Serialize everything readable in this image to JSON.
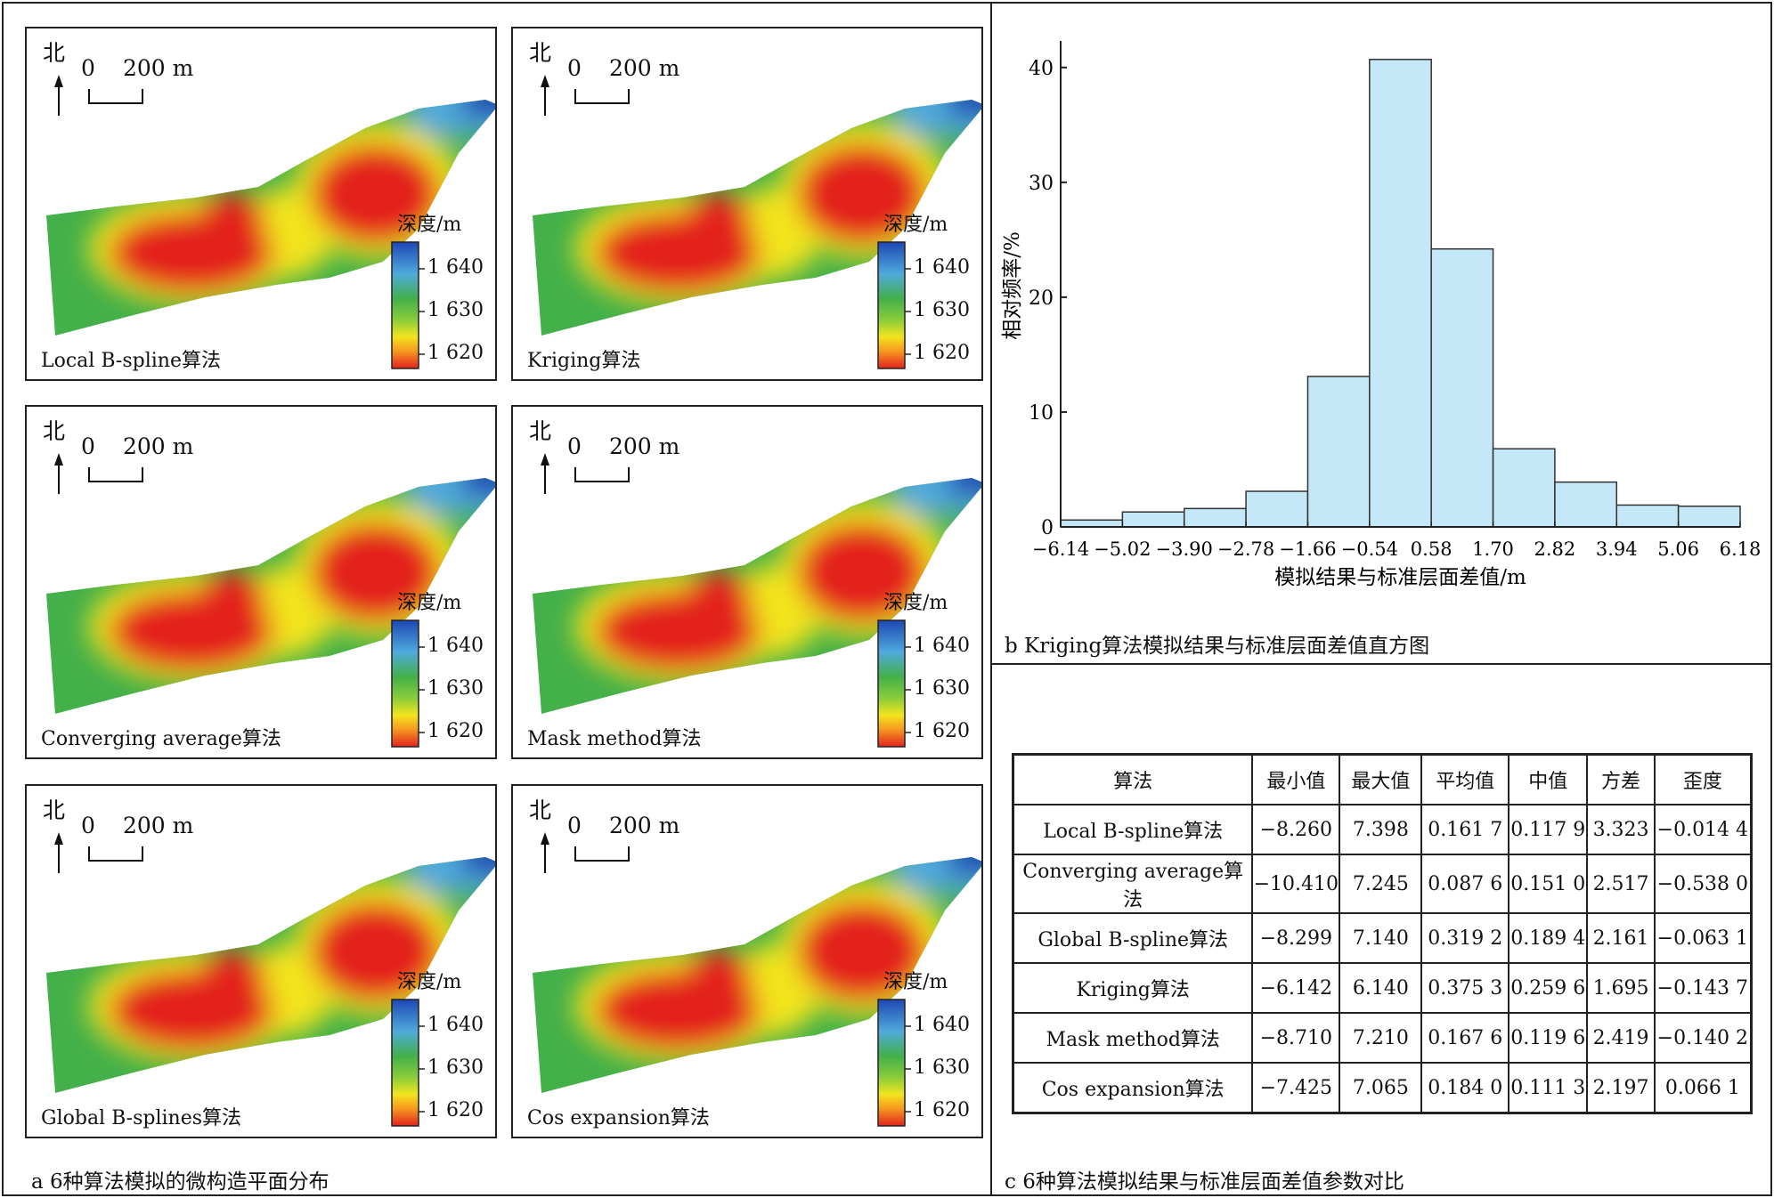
{
  "panel_a": {
    "caption": "a 6种算法模拟的微构造平面分布",
    "north_label": "北",
    "scale_zero": "0",
    "scale_label": "200 m",
    "legend_title": "深度/m",
    "legend_ticks": [
      "1 640",
      "1 630",
      "1 620"
    ],
    "maps": [
      {
        "name": "Local B-spline算法"
      },
      {
        "name": "Kriging算法"
      },
      {
        "name": "Converging average算法"
      },
      {
        "name": "Mask method算法"
      },
      {
        "name": "Global B-splines算法"
      },
      {
        "name": "Cos expansion算法"
      }
    ]
  },
  "panel_b": {
    "caption": "b Kriging算法模拟结果与标准层面差值直方图"
  },
  "panel_c": {
    "caption": "c 6种算法模拟结果与标准层面差值参数对比"
  },
  "colors": {
    "bar_fill": "#c4e8f8",
    "bar_stroke": "#333333",
    "colormap": [
      "#1e47b4",
      "#4fa9dc",
      "#43b04a",
      "#8ccd3a",
      "#f2e41e",
      "#f79a1f",
      "#e3231f"
    ]
  },
  "chart_data": [
    {
      "type": "bar",
      "title": "",
      "xlabel": "模拟结果与标准层面差值/m",
      "ylabel": "相对频率/%",
      "bin_edges": [
        -6.14,
        -5.02,
        -3.9,
        -2.78,
        -1.66,
        -0.54,
        0.58,
        1.7,
        2.82,
        3.94,
        5.06,
        6.18
      ],
      "x_tick_labels": [
        "−6.14",
        "−5.02",
        "−3.90",
        "−2.78",
        "−1.66",
        "−0.54",
        "0.58",
        "1.70",
        "2.82",
        "3.94",
        "5.06",
        "6.18"
      ],
      "values": [
        0.6,
        1.3,
        1.6,
        3.1,
        13.1,
        40.7,
        24.2,
        6.8,
        3.9,
        1.9,
        1.8
      ],
      "y_ticks": [
        0,
        10,
        20,
        30,
        40
      ],
      "ylim": [
        0,
        42
      ],
      "grid": false
    },
    {
      "type": "table",
      "columns": [
        "算法",
        "最小值",
        "最大值",
        "平均值",
        "中值",
        "方差",
        "歪度"
      ],
      "rows": [
        [
          "Local B-spline算法",
          "−8.260",
          "7.398",
          "0.161 7",
          "0.117 9",
          "3.323",
          "−0.014 4"
        ],
        [
          "Converging average算法",
          "−10.410",
          "7.245",
          "0.087 6",
          "0.151 0",
          "2.517",
          "−0.538 0"
        ],
        [
          "Global B-spline算法",
          "−8.299",
          "7.140",
          "0.319 2",
          "0.189 4",
          "2.161",
          "−0.063 1"
        ],
        [
          "Kriging算法",
          "−6.142",
          "6.140",
          "0.375 3",
          "0.259 6",
          "1.695",
          "−0.143 7"
        ],
        [
          "Mask method算法",
          "−8.710",
          "7.210",
          "0.167 6",
          "0.119 6",
          "2.419",
          "−0.140 2"
        ],
        [
          "Cos expansion算法",
          "−7.425",
          "7.065",
          "0.184 0",
          "0.111 3",
          "2.197",
          "0.066 1"
        ]
      ]
    }
  ]
}
